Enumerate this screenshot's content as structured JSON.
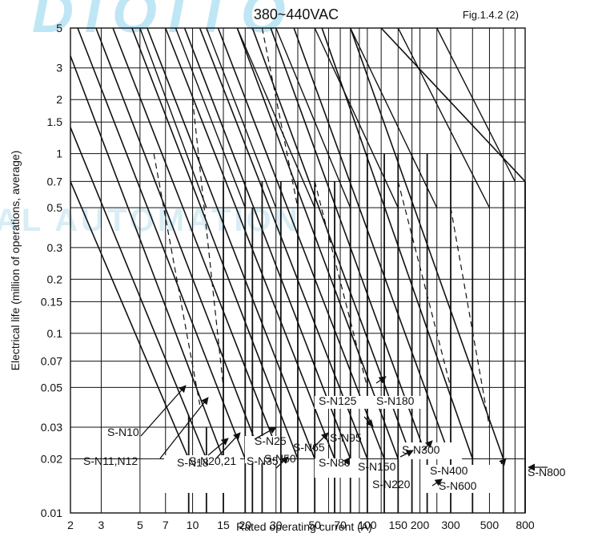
{
  "header": {
    "title": "380~440VAC",
    "figure_ref": "Fig.1.4.2 (2)"
  },
  "watermark": {
    "top_text": "DIOITO",
    "mid_text": "AL AUTOMATION"
  },
  "chart_data": {
    "type": "line",
    "title": "380~440VAC",
    "xlabel": "Rated operating current (A)",
    "ylabel": "Electrical life (million of operations,  average)",
    "xscale": "log",
    "yscale": "log",
    "xlim": [
      2,
      800
    ],
    "ylim": [
      0.01,
      5
    ],
    "grid": true,
    "xticks": [
      2,
      3,
      5,
      7,
      10,
      15,
      20,
      30,
      50,
      70,
      100,
      150,
      200,
      300,
      500,
      800
    ],
    "xtick_labels": [
      "2",
      "3",
      "5",
      "7",
      "10",
      "15",
      "20",
      "30",
      "50",
      "70",
      "100",
      "150",
      "200",
      "300",
      "500",
      "800"
    ],
    "yticks": [
      0.01,
      0.02,
      0.03,
      0.05,
      0.07,
      0.1,
      0.15,
      0.2,
      0.3,
      0.5,
      0.7,
      1,
      1.5,
      2,
      3,
      5
    ],
    "ytick_labels": [
      "0.01",
      "0.02",
      "0.03",
      "0.05",
      "0.07",
      "0.1",
      "0.15",
      "0.2",
      "0.3",
      "0.5",
      "0.7",
      "1",
      "1.5",
      "2",
      "3",
      "5"
    ],
    "extra_vertical_gridlines": [
      40,
      60,
      80,
      90,
      120,
      180,
      250,
      400,
      600,
      700
    ],
    "labels": [
      "S-N10",
      "S-N11,N12",
      "S-N18",
      "S-N20,21",
      "S-N25",
      "S-N35",
      "S-N50",
      "S-N65",
      "S-N80",
      "S-N95",
      "S-N125",
      "S-N150",
      "S-N180",
      "S-N220",
      "S-N300",
      "S-N400",
      "S-N600",
      "S-N800"
    ],
    "life_lines": [
      {
        "x1": 2,
        "y1": 0.7,
        "x2": 9.5,
        "y2": 0.02
      },
      {
        "x1": 2,
        "y1": 1.4,
        "x2": 12,
        "y2": 0.02
      },
      {
        "x1": 2,
        "y1": 3.5,
        "x2": 15,
        "y2": 0.02
      },
      {
        "x1": 2.2,
        "y1": 5,
        "x2": 20,
        "y2": 0.02
      },
      {
        "x1": 2.8,
        "y1": 5,
        "x2": 25,
        "y2": 0.02
      },
      {
        "x1": 3.5,
        "y1": 5,
        "x2": 32,
        "y2": 0.02
      },
      {
        "x1": 4.5,
        "y1": 5,
        "x2": 40,
        "y2": 0.02
      },
      {
        "x1": 5.5,
        "y1": 5,
        "x2": 50,
        "y2": 0.02
      },
      {
        "x1": 7,
        "y1": 5,
        "x2": 65,
        "y2": 0.02
      },
      {
        "x1": 9,
        "y1": 5,
        "x2": 80,
        "y2": 0.02
      },
      {
        "x1": 11,
        "y1": 5,
        "x2": 100,
        "y2": 0.02
      },
      {
        "x1": 14,
        "y1": 5,
        "x2": 125,
        "y2": 0.02
      },
      {
        "x1": 18,
        "y1": 5,
        "x2": 150,
        "y2": 0.02
      },
      {
        "x1": 22,
        "y1": 5,
        "x2": 180,
        "y2": 0.02
      },
      {
        "x1": 28,
        "y1": 5,
        "x2": 220,
        "y2": 0.02
      },
      {
        "x1": 38,
        "y1": 5,
        "x2": 300,
        "y2": 0.02
      },
      {
        "x1": 55,
        "y1": 5,
        "x2": 400,
        "y2": 0.02
      },
      {
        "x1": 80,
        "y1": 5,
        "x2": 600,
        "y2": 0.02
      },
      {
        "x1": 120,
        "y1": 5,
        "x2": 800,
        "y2": 0.7
      }
    ],
    "life_lines_secondary": [
      {
        "x1": 5,
        "y1": 5,
        "x2": 12,
        "y2": 0.5
      },
      {
        "x1": 8,
        "y1": 5,
        "x2": 20,
        "y2": 0.5
      },
      {
        "x1": 12,
        "y1": 5,
        "x2": 30,
        "y2": 0.5
      },
      {
        "x1": 18,
        "y1": 5,
        "x2": 50,
        "y2": 0.5
      },
      {
        "x1": 30,
        "y1": 5,
        "x2": 80,
        "y2": 0.5
      },
      {
        "x1": 50,
        "y1": 5,
        "x2": 150,
        "y2": 0.5
      },
      {
        "x1": 80,
        "y1": 5,
        "x2": 250,
        "y2": 0.5
      },
      {
        "x1": 150,
        "y1": 5,
        "x2": 500,
        "y2": 0.5
      },
      {
        "x1": 250,
        "y1": 5,
        "x2": 700,
        "y2": 0.7
      }
    ],
    "dashed_lines": [
      {
        "x1": 6,
        "y1": 1,
        "x2": 11,
        "y2": 0.04
      },
      {
        "x1": 10,
        "y1": 2,
        "x2": 15,
        "y2": 0.05
      },
      {
        "x1": 25,
        "y1": 5,
        "x2": 40,
        "y2": 0.5
      },
      {
        "x1": 50,
        "y1": 0.7,
        "x2": 100,
        "y2": 0.05
      },
      {
        "x1": 150,
        "y1": 0.7,
        "x2": 300,
        "y2": 0.05
      },
      {
        "x1": 300,
        "y1": 0.5,
        "x2": 500,
        "y2": 0.03
      }
    ],
    "rating_verticals": [
      {
        "x": 9.5,
        "y_top": 0.035
      },
      {
        "x": 12,
        "y_top": 0.03
      },
      {
        "x": 15,
        "y_top": 0.7
      },
      {
        "x": 20,
        "y_top": 0.7
      },
      {
        "x": 22,
        "y_top": 0.5
      },
      {
        "x": 25,
        "y_top": 0.7
      },
      {
        "x": 32,
        "y_top": 0.7
      },
      {
        "x": 40,
        "y_top": 0.7
      },
      {
        "x": 50,
        "y_top": 0.7
      },
      {
        "x": 65,
        "y_top": 0.7
      },
      {
        "x": 80,
        "y_top": 1.0
      },
      {
        "x": 100,
        "y_top": 1.0
      },
      {
        "x": 125,
        "y_top": 1.0
      },
      {
        "x": 150,
        "y_top": 1.0
      },
      {
        "x": 180,
        "y_top": 1.0
      },
      {
        "x": 220,
        "y_top": 1.0
      },
      {
        "x": 300,
        "y_top": 1.0
      },
      {
        "x": 400,
        "y_top": 0.7
      },
      {
        "x": 600,
        "y_top": 0.7
      },
      {
        "x": 800,
        "y_top": 0.7
      }
    ]
  }
}
